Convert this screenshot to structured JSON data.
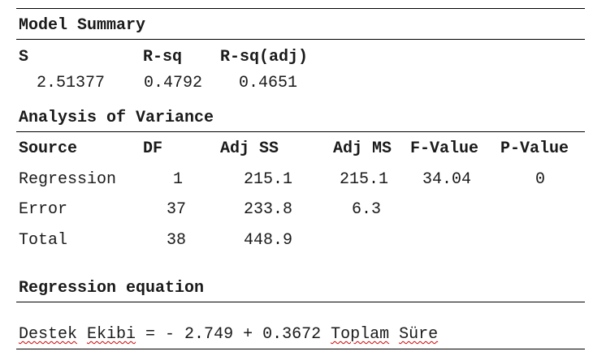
{
  "model_summary": {
    "title": "Model Summary",
    "headers": [
      "S",
      "R-sq",
      "R-sq(adj)"
    ],
    "values": [
      "2.51377",
      "0.4792",
      "0.4651"
    ]
  },
  "anova": {
    "title": "Analysis of Variance",
    "headers": [
      "Source",
      "DF",
      "Adj SS",
      "Adj MS",
      "F-Value",
      "P-Value"
    ],
    "rows": [
      {
        "source": "Regression",
        "df": "1",
        "adj_ss": "215.1",
        "adj_ms": "215.1",
        "f_value": "34.04",
        "p_value": "0"
      },
      {
        "source": "Error",
        "df": "37",
        "adj_ss": "233.8",
        "adj_ms": "6.3",
        "f_value": "",
        "p_value": ""
      },
      {
        "source": "Total",
        "df": "38",
        "adj_ss": "448.9",
        "adj_ms": "",
        "f_value": "",
        "p_value": ""
      }
    ]
  },
  "regression": {
    "title": "Regression equation",
    "equation": {
      "response_word1": "Destek",
      "response_word2": "Ekibi",
      "middle": " = - 2.749 + 0.3672 ",
      "predictor_word1": "Toplam",
      "predictor_word2": "Süre"
    }
  },
  "colors": {
    "text": "#1a1a1a",
    "rule": "#000000",
    "spellcheck_underline": "#d00000"
  }
}
